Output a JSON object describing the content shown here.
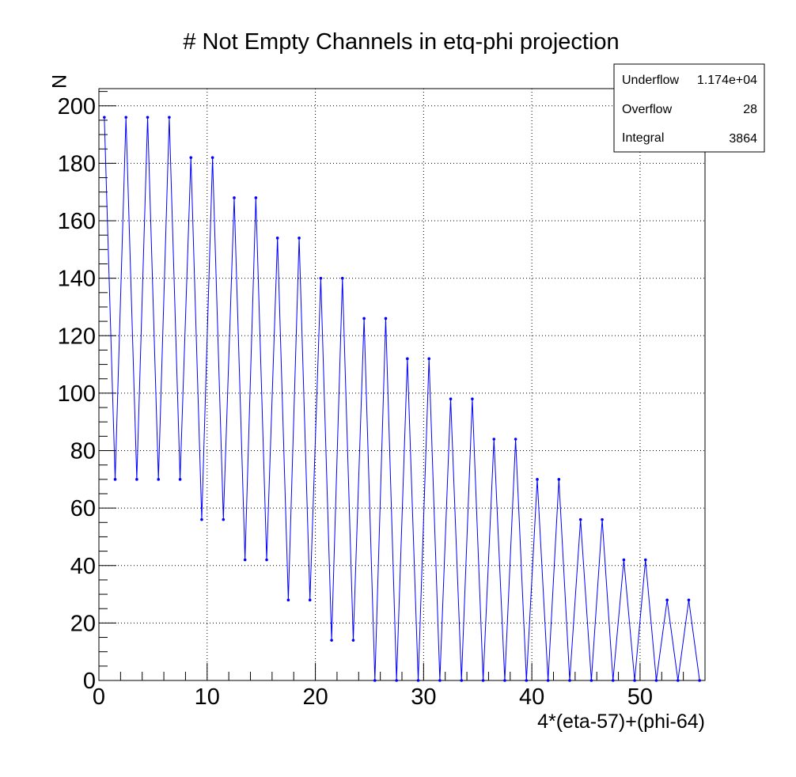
{
  "chart_data": {
    "type": "line",
    "title": "# Not Empty Channels in etq-phi projection",
    "xlabel": "4*(eta-57)+(phi-64)",
    "ylabel": "N",
    "xlim": [
      0,
      56
    ],
    "ylim": [
      0,
      206
    ],
    "xticks": [
      0,
      10,
      20,
      30,
      40,
      50
    ],
    "yticks": [
      0,
      20,
      40,
      60,
      80,
      100,
      120,
      140,
      160,
      180,
      200
    ],
    "grid": true,
    "line_color": "#0000ff",
    "x": [
      0.5,
      1.5,
      2.5,
      3.5,
      4.5,
      5.5,
      6.5,
      7.5,
      8.5,
      9.5,
      10.5,
      11.5,
      12.5,
      13.5,
      14.5,
      15.5,
      16.5,
      17.5,
      18.5,
      19.5,
      20.5,
      21.5,
      22.5,
      23.5,
      24.5,
      25.5,
      26.5,
      27.5,
      28.5,
      29.5,
      30.5,
      31.5,
      32.5,
      33.5,
      34.5,
      35.5,
      36.5,
      37.5,
      38.5,
      39.5,
      40.5,
      41.5,
      42.5,
      43.5,
      44.5,
      45.5,
      46.5,
      47.5,
      48.5,
      49.5,
      50.5,
      51.5,
      52.5,
      53.5,
      54.5,
      55.5
    ],
    "series": [
      {
        "values": [
          196,
          70,
          196,
          70,
          196,
          70,
          196,
          70,
          182,
          56,
          182,
          56,
          168,
          42,
          168,
          42,
          154,
          28,
          154,
          28,
          140,
          14,
          140,
          14,
          126,
          0,
          126,
          0,
          112,
          0,
          112,
          0,
          98,
          0,
          98,
          0,
          84,
          0,
          84,
          0,
          70,
          0,
          70,
          0,
          56,
          0,
          56,
          0,
          42,
          0,
          42,
          0,
          28,
          0,
          28,
          0
        ]
      }
    ]
  },
  "stats": {
    "rows": [
      {
        "label": "Underflow",
        "value": "1.174e+04"
      },
      {
        "label": "Overflow",
        "value": "28"
      },
      {
        "label": "Integral",
        "value": "3864"
      }
    ]
  }
}
